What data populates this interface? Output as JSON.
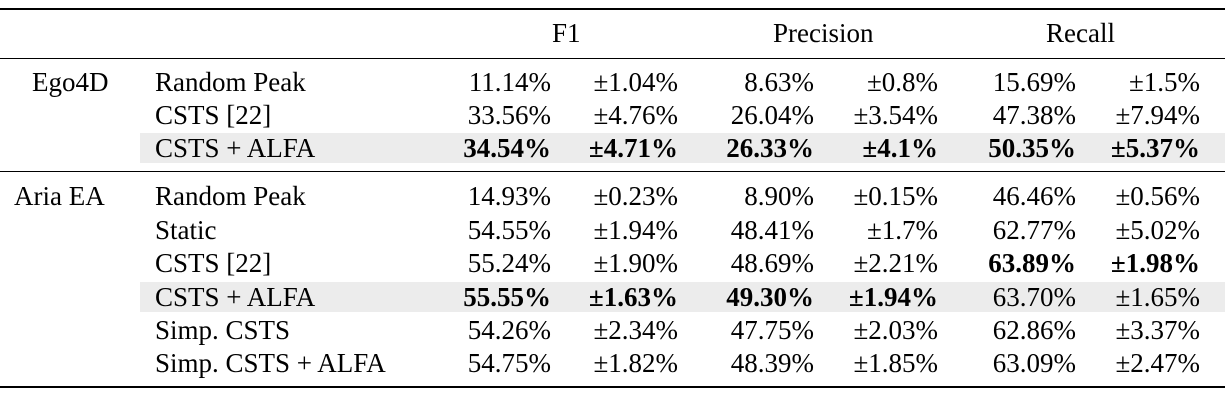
{
  "headers": {
    "f1": "F1",
    "precision": "Precision",
    "recall": "Recall"
  },
  "groups": [
    {
      "name": "Ego4D",
      "rows": [
        {
          "method": "Random Peak",
          "f1": "11.14%",
          "f1_pm": "±1.04%",
          "precision": "8.63%",
          "precision_pm": "±0.8%",
          "recall": "15.69%",
          "recall_pm": "±1.5%"
        },
        {
          "method": "CSTS [22]",
          "f1": "33.56%",
          "f1_pm": "±4.76%",
          "precision": "26.04%",
          "precision_pm": "±3.54%",
          "recall": "47.38%",
          "recall_pm": "±7.94%"
        },
        {
          "method": "CSTS + ALFA",
          "f1": "34.54%",
          "f1_pm": "±4.71%",
          "precision": "26.33%",
          "precision_pm": "±4.1%",
          "recall": "50.35%",
          "recall_pm": "±5.37%"
        }
      ]
    },
    {
      "name": "Aria EA",
      "rows": [
        {
          "method": "Random Peak",
          "f1": "14.93%",
          "f1_pm": "±0.23%",
          "precision": "8.90%",
          "precision_pm": "±0.15%",
          "recall": "46.46%",
          "recall_pm": "±0.56%"
        },
        {
          "method": "Static",
          "f1": "54.55%",
          "f1_pm": "±1.94%",
          "precision": "48.41%",
          "precision_pm": "±1.7%",
          "recall": "62.77%",
          "recall_pm": "±5.02%"
        },
        {
          "method": "CSTS [22]",
          "f1": "55.24%",
          "f1_pm": "±1.90%",
          "precision": "48.69%",
          "precision_pm": "±2.21%",
          "recall": "63.89%",
          "recall_pm": "±1.98%"
        },
        {
          "method": "CSTS + ALFA",
          "f1": "55.55%",
          "f1_pm": "±1.63%",
          "precision": "49.30%",
          "precision_pm": "±1.94%",
          "recall": "63.70%",
          "recall_pm": "±1.65%"
        },
        {
          "method": "Simp. CSTS",
          "f1": "54.26%",
          "f1_pm": "±2.34%",
          "precision": "47.75%",
          "precision_pm": "±2.03%",
          "recall": "62.86%",
          "recall_pm": "±3.37%"
        },
        {
          "method": "Simp. CSTS + ALFA",
          "f1": "54.75%",
          "f1_pm": "±1.82%",
          "precision": "48.39%",
          "precision_pm": "±1.85%",
          "recall": "63.09%",
          "recall_pm": "±2.47%"
        }
      ]
    }
  ]
}
